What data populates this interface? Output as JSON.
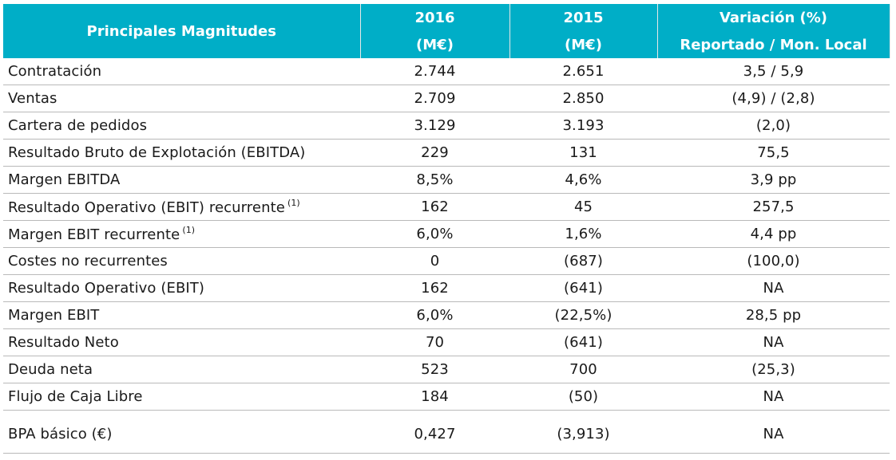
{
  "table": {
    "header": {
      "col0": "Principales Magnitudes",
      "col1": [
        "2016",
        "(M€)"
      ],
      "col2": [
        "2015",
        "(M€)"
      ],
      "col3": [
        "Variación (%)",
        "Reportado / Mon. Local"
      ]
    },
    "rows": [
      {
        "label": "Contratación",
        "note": "",
        "v2016": "2.744",
        "v2015": "2.651",
        "var": "3,5 / 5,9"
      },
      {
        "label": "Ventas",
        "note": "",
        "v2016": "2.709",
        "v2015": "2.850",
        "var": "(4,9) / (2,8)"
      },
      {
        "label": "Cartera de pedidos",
        "note": "",
        "v2016": "3.129",
        "v2015": "3.193",
        "var": "(2,0)"
      },
      {
        "label": "Resultado Bruto de Explotación (EBITDA)",
        "note": "",
        "v2016": "229",
        "v2015": "131",
        "var": "75,5"
      },
      {
        "label": "Margen EBITDA",
        "note": "",
        "v2016": "8,5%",
        "v2015": "4,6%",
        "var": "3,9 pp"
      },
      {
        "label": "Resultado Operativo (EBIT) recurrente",
        "note": "(1)",
        "v2016": "162",
        "v2015": "45",
        "var": "257,5"
      },
      {
        "label": "Margen EBIT recurrente",
        "note": "(1)",
        "v2016": "6,0%",
        "v2015": "1,6%",
        "var": "4,4 pp"
      },
      {
        "label": "Costes no recurrentes",
        "note": "",
        "v2016": "0",
        "v2015": "(687)",
        "var": "(100,0)"
      },
      {
        "label": "Resultado Operativo (EBIT)",
        "note": "",
        "v2016": "162",
        "v2015": "(641)",
        "var": "NA"
      },
      {
        "label": "Margen EBIT",
        "note": "",
        "v2016": "6,0%",
        "v2015": "(22,5%)",
        "var": "28,5 pp"
      },
      {
        "label": "Resultado Neto",
        "note": "",
        "v2016": "70",
        "v2015": "(641)",
        "var": "NA"
      },
      {
        "label": "Deuda neta",
        "note": "",
        "v2016": "523",
        "v2015": "700",
        "var": "(25,3)"
      },
      {
        "label": "Flujo de Caja Libre",
        "note": "",
        "v2016": "184",
        "v2015": "(50)",
        "var": "NA"
      },
      {
        "label": "BPA básico (€)",
        "note": "",
        "v2016": "0,427",
        "v2015": "(3,913)",
        "var": "NA"
      }
    ]
  },
  "colors": {
    "header_bg": "#00aec7",
    "header_text": "#ffffff",
    "row_border": "#b9b9b9"
  }
}
